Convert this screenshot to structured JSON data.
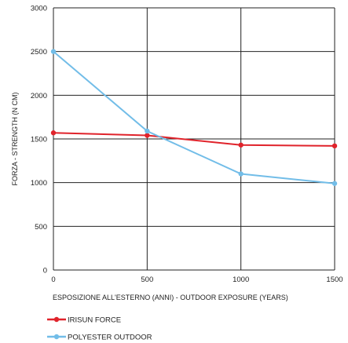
{
  "chart_data": {
    "type": "line",
    "xlabel": "ESPOSIZIONE ALL'ESTERNO (ANNI) - OUTDOOR EXPOSURE (YEARS)",
    "ylabel": "FORZA - STRENGTH  (N CM)",
    "x_ticks": [
      "0",
      "500",
      "1000",
      "1500"
    ],
    "y_ticks": [
      "0",
      "500",
      "1000",
      "1500",
      "2000",
      "2500",
      "3000"
    ],
    "xlim": [
      0,
      1500
    ],
    "ylim": [
      0,
      3000
    ],
    "grid": true,
    "legend_position": "bottom-left",
    "series": [
      {
        "name": "IRISUN FORCE",
        "color": "#e0232b",
        "x": [
          0,
          500,
          1000,
          1500
        ],
        "values": [
          1570,
          1540,
          1430,
          1420
        ]
      },
      {
        "name": "POLYESTER  OUTDOOR",
        "color": "#72bde8",
        "x": [
          0,
          500,
          1000,
          1500
        ],
        "values": [
          2500,
          1590,
          1100,
          990
        ]
      }
    ]
  }
}
